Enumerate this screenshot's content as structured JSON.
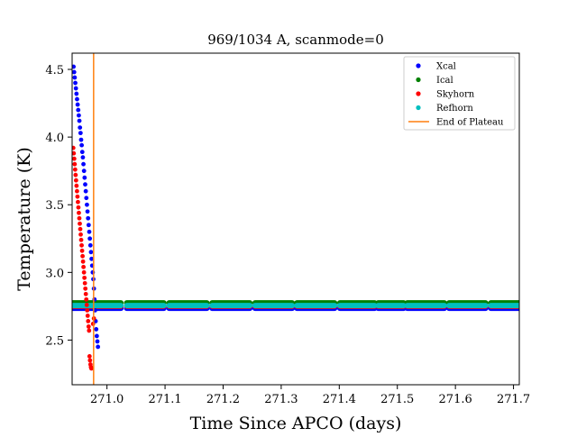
{
  "chart_data": {
    "type": "scatter",
    "title": "969/1034 A, scanmode=0",
    "xlabel": "Time Since APCO (days)",
    "ylabel": "Temperature (K)",
    "xlim": [
      270.94,
      271.71
    ],
    "ylim": [
      2.17,
      4.62
    ],
    "xticks": [
      271.0,
      271.1,
      271.2,
      271.3,
      271.4,
      271.5,
      271.6,
      271.7
    ],
    "xtick_labels": [
      "271.0",
      "271.1",
      "271.2",
      "271.3",
      "271.4",
      "271.5",
      "271.6",
      "271.7"
    ],
    "yticks": [
      2.5,
      3.0,
      3.5,
      4.0,
      4.5
    ],
    "ytick_labels": [
      "2.5",
      "3.0",
      "3.5",
      "4.0",
      "4.5"
    ],
    "grid": false,
    "legend_position": "top-right",
    "vertical_line": {
      "name": "End of Plateau",
      "x": 270.977,
      "color": "#ff7f0e"
    },
    "plateau_segments": [
      [
        270.94,
        271.024
      ],
      [
        271.034,
        271.098
      ],
      [
        271.107,
        271.172
      ],
      [
        271.181,
        271.246
      ],
      [
        271.255,
        271.319
      ],
      [
        271.327,
        271.392
      ],
      [
        271.401,
        271.461
      ],
      [
        271.467,
        271.511
      ],
      [
        271.517,
        271.581
      ],
      [
        271.589,
        271.652
      ],
      [
        271.661,
        271.71
      ]
    ],
    "series": [
      {
        "name": "Xcal",
        "color": "#0000ff",
        "transient": [
          [
            270.9425,
            4.52
          ],
          [
            270.9435,
            4.48
          ],
          [
            270.9445,
            4.44
          ],
          [
            270.9455,
            4.4
          ],
          [
            270.9465,
            4.36
          ],
          [
            270.9475,
            4.32
          ],
          [
            270.9485,
            4.28
          ],
          [
            270.9495,
            4.24
          ],
          [
            270.9505,
            4.2
          ],
          [
            270.9515,
            4.16
          ],
          [
            270.9525,
            4.12
          ],
          [
            270.9535,
            4.07
          ],
          [
            270.9545,
            4.03
          ],
          [
            270.9555,
            3.98
          ],
          [
            270.9565,
            3.94
          ],
          [
            270.9575,
            3.89
          ],
          [
            270.9585,
            3.85
          ],
          [
            270.9595,
            3.8
          ],
          [
            270.9605,
            3.75
          ],
          [
            270.9615,
            3.7
          ],
          [
            270.9625,
            3.65
          ],
          [
            270.9635,
            3.6
          ],
          [
            270.9645,
            3.55
          ],
          [
            270.9655,
            3.5
          ],
          [
            270.9665,
            3.45
          ],
          [
            270.9675,
            3.4
          ],
          [
            270.9685,
            3.35
          ],
          [
            270.9695,
            3.3
          ],
          [
            270.9705,
            3.25
          ],
          [
            270.9715,
            3.2
          ],
          [
            270.9725,
            3.15
          ],
          [
            270.9735,
            3.1
          ],
          [
            270.9745,
            3.05
          ],
          [
            270.9755,
            3.0
          ],
          [
            270.9765,
            2.95
          ],
          [
            270.9775,
            2.88
          ],
          [
            270.9785,
            2.8
          ],
          [
            270.9795,
            2.72
          ],
          [
            270.9805,
            2.64
          ],
          [
            270.9815,
            2.58
          ],
          [
            270.9825,
            2.53
          ],
          [
            270.9835,
            2.49
          ],
          [
            270.9845,
            2.45
          ]
        ],
        "plateau": 2.735
      },
      {
        "name": "Ical",
        "color": "#008000",
        "transient": [],
        "plateau": 2.775
      },
      {
        "name": "Skyhorn",
        "color": "#ff0000",
        "transient": [
          [
            270.942,
            3.92
          ],
          [
            270.9428,
            3.88
          ],
          [
            270.9436,
            3.84
          ],
          [
            270.9444,
            3.8
          ],
          [
            270.9452,
            3.76
          ],
          [
            270.946,
            3.72
          ],
          [
            270.9468,
            3.68
          ],
          [
            270.9476,
            3.64
          ],
          [
            270.9484,
            3.6
          ],
          [
            270.9492,
            3.56
          ],
          [
            270.95,
            3.52
          ],
          [
            270.9508,
            3.48
          ],
          [
            270.9516,
            3.44
          ],
          [
            270.9524,
            3.4
          ],
          [
            270.9532,
            3.36
          ],
          [
            270.954,
            3.32
          ],
          [
            270.9548,
            3.28
          ],
          [
            270.9556,
            3.24
          ],
          [
            270.9564,
            3.2
          ],
          [
            270.9572,
            3.16
          ],
          [
            270.958,
            3.12
          ],
          [
            270.9588,
            3.08
          ],
          [
            270.9596,
            3.04
          ],
          [
            270.9604,
            3.0
          ],
          [
            270.9612,
            2.96
          ],
          [
            270.962,
            2.92
          ],
          [
            270.9628,
            2.88
          ],
          [
            270.9636,
            2.84
          ],
          [
            270.9644,
            2.8
          ],
          [
            270.9652,
            2.76
          ],
          [
            270.966,
            2.72
          ],
          [
            270.9668,
            2.68
          ],
          [
            270.9676,
            2.64
          ],
          [
            270.9684,
            2.6
          ],
          [
            270.9692,
            2.57
          ],
          [
            270.97,
            2.38
          ],
          [
            270.9708,
            2.35
          ],
          [
            270.9716,
            2.32
          ],
          [
            270.9724,
            2.3
          ],
          [
            270.9732,
            2.29
          ],
          [
            270.976,
            2.62
          ],
          [
            270.9775,
            2.66
          ]
        ],
        "plateau": 2.75
      },
      {
        "name": "Refhorn",
        "color": "#00bfbf",
        "transient": [],
        "plateau": 2.755
      }
    ]
  }
}
